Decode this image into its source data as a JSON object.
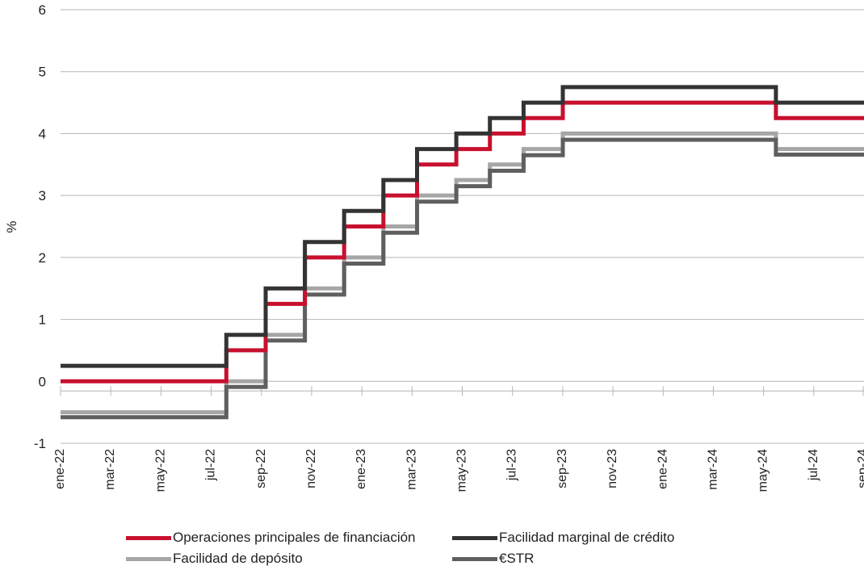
{
  "chart_data": {
    "type": "line",
    "title": "",
    "xlabel": "",
    "ylabel": "%",
    "ylim": [
      -1,
      5
    ],
    "yticks": [
      "-1",
      "0",
      "1",
      "2",
      "3",
      "4",
      "5"
    ],
    "x_ticks": [
      "ene-22",
      "mar-22",
      "may-22",
      "jul-22",
      "sep-22",
      "nov-22",
      "ene-23",
      "mar-23",
      "may-23",
      "jul-23",
      "sep-23",
      "nov-23",
      "ene-24",
      "mar-24",
      "may-24",
      "jul-24",
      "sep-24"
    ],
    "grid": "horizontal",
    "legend_position": "bottom",
    "series": [
      {
        "name": "Operaciones principales de financiación",
        "color": "#c8102e",
        "steps": [
          {
            "date": "2022-01-01",
            "value": 0.0
          },
          {
            "date": "2022-07-27",
            "value": 0.5
          },
          {
            "date": "2022-09-14",
            "value": 1.25
          },
          {
            "date": "2022-11-02",
            "value": 2.0
          },
          {
            "date": "2022-12-21",
            "value": 2.5
          },
          {
            "date": "2023-02-08",
            "value": 3.0
          },
          {
            "date": "2023-03-22",
            "value": 3.5
          },
          {
            "date": "2023-05-10",
            "value": 3.75
          },
          {
            "date": "2023-06-21",
            "value": 4.0
          },
          {
            "date": "2023-08-02",
            "value": 4.25
          },
          {
            "date": "2023-09-20",
            "value": 4.5
          },
          {
            "date": "2024-06-12",
            "value": 4.25
          },
          {
            "date": "2024-09-30",
            "value": 4.25
          }
        ]
      },
      {
        "name": "Facilidad marginal de crédito",
        "color": "#333333",
        "steps": [
          {
            "date": "2022-01-01",
            "value": 0.25
          },
          {
            "date": "2022-07-27",
            "value": 0.75
          },
          {
            "date": "2022-09-14",
            "value": 1.5
          },
          {
            "date": "2022-11-02",
            "value": 2.25
          },
          {
            "date": "2022-12-21",
            "value": 2.75
          },
          {
            "date": "2023-02-08",
            "value": 3.25
          },
          {
            "date": "2023-03-22",
            "value": 3.75
          },
          {
            "date": "2023-05-10",
            "value": 4.0
          },
          {
            "date": "2023-06-21",
            "value": 4.25
          },
          {
            "date": "2023-08-02",
            "value": 4.5
          },
          {
            "date": "2023-09-20",
            "value": 4.75
          },
          {
            "date": "2024-06-12",
            "value": 4.5
          },
          {
            "date": "2024-09-30",
            "value": 4.5
          }
        ]
      },
      {
        "name": "Facilidad de depósito",
        "color": "#a6a6a6",
        "steps": [
          {
            "date": "2022-01-01",
            "value": -0.5
          },
          {
            "date": "2022-07-27",
            "value": 0.0
          },
          {
            "date": "2022-09-14",
            "value": 0.75
          },
          {
            "date": "2022-11-02",
            "value": 1.5
          },
          {
            "date": "2022-12-21",
            "value": 2.0
          },
          {
            "date": "2023-02-08",
            "value": 2.5
          },
          {
            "date": "2023-03-22",
            "value": 3.0
          },
          {
            "date": "2023-05-10",
            "value": 3.25
          },
          {
            "date": "2023-06-21",
            "value": 3.5
          },
          {
            "date": "2023-08-02",
            "value": 3.75
          },
          {
            "date": "2023-09-20",
            "value": 4.0
          },
          {
            "date": "2024-06-12",
            "value": 3.75
          },
          {
            "date": "2024-09-30",
            "value": 3.75
          }
        ]
      },
      {
        "name": "€STR",
        "color": "#5f5f5f",
        "steps": [
          {
            "date": "2022-01-01",
            "value": -0.58
          },
          {
            "date": "2022-07-27",
            "value": -0.09
          },
          {
            "date": "2022-09-14",
            "value": 0.66
          },
          {
            "date": "2022-11-02",
            "value": 1.4
          },
          {
            "date": "2022-12-21",
            "value": 1.9
          },
          {
            "date": "2023-02-08",
            "value": 2.4
          },
          {
            "date": "2023-03-22",
            "value": 2.9
          },
          {
            "date": "2023-05-10",
            "value": 3.15
          },
          {
            "date": "2023-06-21",
            "value": 3.4
          },
          {
            "date": "2023-08-02",
            "value": 3.65
          },
          {
            "date": "2023-09-20",
            "value": 3.9
          },
          {
            "date": "2024-06-12",
            "value": 3.66
          },
          {
            "date": "2024-09-30",
            "value": 3.66
          }
        ]
      }
    ]
  }
}
